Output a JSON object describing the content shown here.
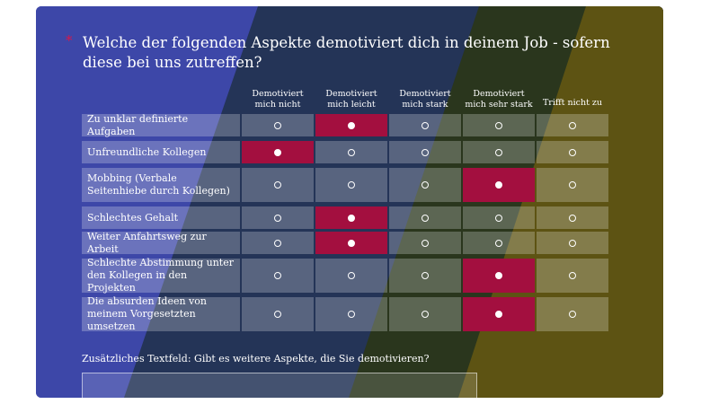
{
  "question": {
    "required_mark": "*",
    "text": "Welche der folgenden Aspekte demotiviert dich in deinem Job - sofern diese bei uns zutreffen?"
  },
  "columns": [
    "Demotiviert mich nicht",
    "Demotiviert mich leicht",
    "Demotiviert mich stark",
    "Demotiviert mich sehr stark",
    "Trifft nicht zu"
  ],
  "rows": [
    {
      "label": "Zu unklar definierte Aufgaben",
      "selected": 1
    },
    {
      "label": "Unfreundliche Kollegen",
      "selected": 0
    },
    {
      "label": "Mobbing (Verbale Seitenhiebe durch Kollegen)",
      "selected": 3
    },
    {
      "label": "Schlechtes Gehalt",
      "selected": 1
    },
    {
      "label": "Weiter Anfahrtsweg zur Arbeit",
      "selected": 1
    },
    {
      "label": "Schlechte Abstimmung unter den Kollegen in den Projekten",
      "selected": 3
    },
    {
      "label": "Die absurden Ideen von meinem Vorgesetzten umsetzen",
      "selected": 3
    }
  ],
  "extra_field": {
    "label": "Zusätzliches Textfeld: Gibt es weitere Aspekte, die Sie demotivieren?",
    "value": ""
  },
  "colors": {
    "band_blue": "#3d47a8",
    "band_navy": "#243457",
    "band_olive": "#2a361d",
    "band_gold": "#5d5313",
    "selected": "#a30f3f",
    "required": "#d8174a"
  }
}
